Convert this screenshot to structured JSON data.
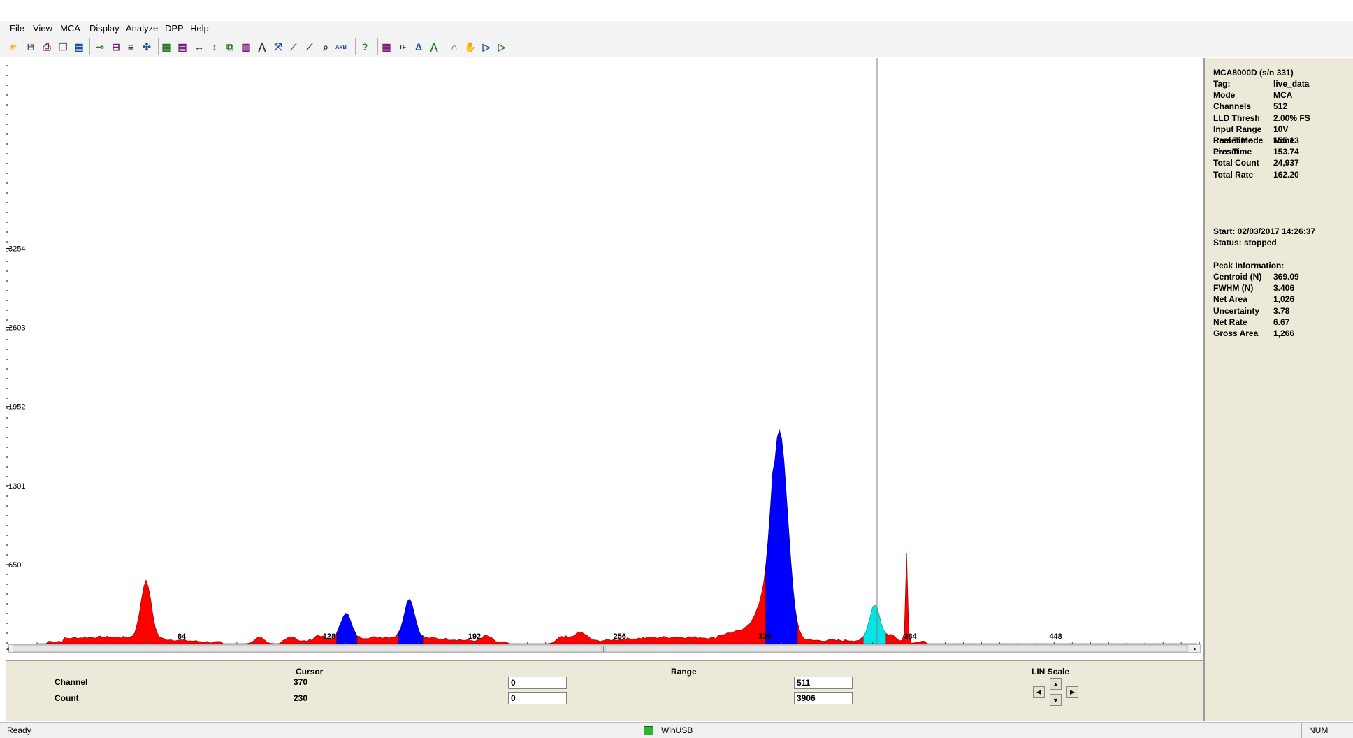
{
  "menu": [
    "File",
    "View",
    "MCA",
    "Display",
    "Analyze",
    "DPP",
    "Help"
  ],
  "toolbar_icons": [
    "open-icon",
    "save-icon",
    "print-icon",
    "copy-icon",
    "print-preview-icon",
    "connect-icon",
    "disconnect-icon",
    "status-icon",
    "settings-icon",
    "color-icon",
    "notes-icon",
    "expand-horizontal-icon",
    "expand-vertical-icon",
    "zoom-window-icon",
    "bar-chart-icon",
    "peaks-icon",
    "autoscale-icon",
    "line-plot-icon",
    "log-plot-icon",
    "search-icon",
    "a-plus-b-icon",
    "help-icon",
    "grid-icon",
    "tune-fast-icon",
    "delta-icon",
    "peak-id-icon",
    "home-icon",
    "tag-icon",
    "play-icon",
    "play-plus-icon"
  ],
  "chart_data": {
    "type": "area",
    "yticks": [
      "650",
      "1301",
      "1952",
      "2603",
      "3254"
    ],
    "xticks": [
      "64",
      "128",
      "192",
      "256",
      "320",
      "384",
      "448"
    ],
    "xlim": [
      0,
      511
    ],
    "ylim": [
      0,
      3906
    ],
    "cursor_channel": 370,
    "regions": [
      {
        "name": "red",
        "color": "#ff0000"
      },
      {
        "name": "blue-roi",
        "color": "#0000ff"
      },
      {
        "name": "cursor-roi",
        "color": "#00e5e5"
      }
    ],
    "peaks": [
      {
        "channel": 48,
        "counts": 470,
        "region": "red"
      },
      {
        "channel": 136,
        "counts": 215,
        "region": "blue-roi"
      },
      {
        "channel": 164,
        "counts": 320,
        "region": "blue-roi"
      },
      {
        "channel": 327,
        "counts": 1730,
        "region": "blue-roi"
      },
      {
        "channel": 369,
        "counts": 300,
        "region": "cursor-roi"
      },
      {
        "channel": 383,
        "counts": 730,
        "region": "red"
      }
    ]
  },
  "bottom": {
    "cursor_header": "Cursor",
    "range_header": "Range",
    "scale_header": "LIN Scale",
    "channel_label": "Channel",
    "count_label": "Count",
    "cursor_channel": "370",
    "cursor_count": "230",
    "range_channel_low": "0",
    "range_channel_high": "511",
    "range_count_low": "0",
    "range_count_high": "3906"
  },
  "info": {
    "device": "MCA8000D (s/n     331)",
    "rows1": [
      {
        "k": "Tag:",
        "v": "live_data"
      },
      {
        "k": "Mode",
        "v": "MCA"
      },
      {
        "k": "Channels",
        "v": "512"
      },
      {
        "k": "LLD Thresh",
        "v": "2.00% FS"
      },
      {
        "k": "Input Range",
        "v": "10V"
      },
      {
        "k": "Preset Mode",
        "v": "None"
      },
      {
        "k": "Preset",
        "v": ""
      }
    ],
    "rows2": [
      {
        "k": "Real Time",
        "v": "155.13"
      },
      {
        "k": "Live Time",
        "v": "153.74"
      },
      {
        "k": "Total Count",
        "v": "24,937"
      },
      {
        "k": "Total Rate",
        "v": "162.20"
      }
    ],
    "start": "Start:  02/03/2017 14:26:37",
    "status": "Status:     stopped",
    "peak_header": "Peak Information:",
    "rows3": [
      {
        "k": "Centroid (N)",
        "v": "369.09"
      },
      {
        "k": "FWHM (N)",
        "v": "3.406"
      },
      {
        "k": "Net Area",
        "v": "1,026"
      },
      {
        "k": "Uncertainty",
        "v": "3.78"
      },
      {
        "k": "Net Rate",
        "v": "6.67"
      },
      {
        "k": "Gross Area",
        "v": "1,266"
      }
    ]
  },
  "status": {
    "left": "Ready",
    "center": "WinUSB",
    "right": "NUM"
  }
}
